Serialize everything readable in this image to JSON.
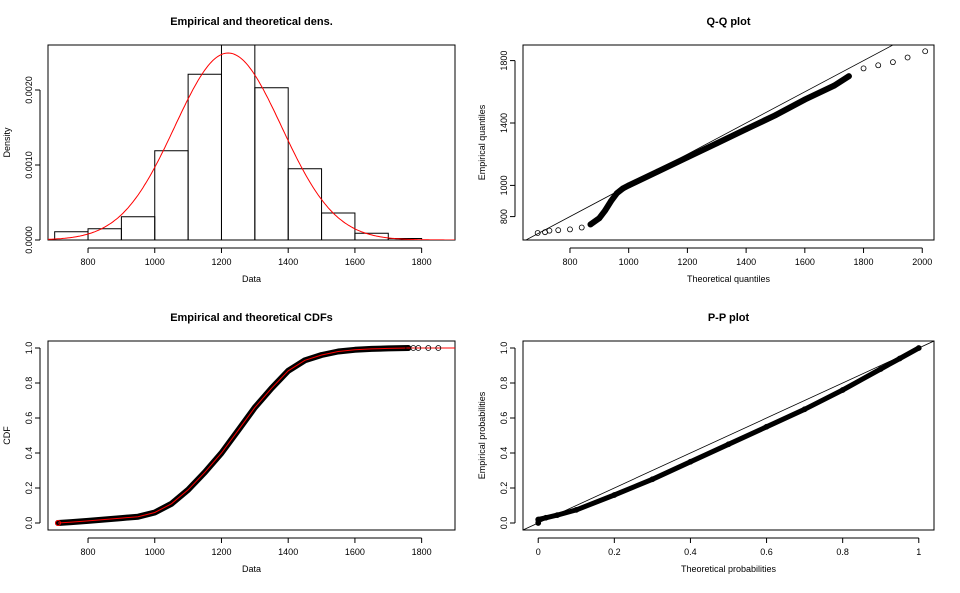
{
  "chart_data": [
    {
      "type": "histogram",
      "title": "Empirical and theoretical dens.",
      "xlabel": "Data",
      "ylabel": "Density",
      "xlim": [
        680,
        1900
      ],
      "ylim": [
        0,
        0.0026
      ],
      "x_ticks": [
        800,
        1000,
        1200,
        1400,
        1600,
        1800
      ],
      "y_ticks": [
        0.0,
        0.001,
        0.002
      ],
      "y_tick_labels": [
        "0.0000",
        "0.0010",
        "0.0020"
      ],
      "bins": [
        {
          "x0": 700,
          "x1": 800,
          "density": 0.00011
        },
        {
          "x0": 800,
          "x1": 900,
          "density": 0.00015
        },
        {
          "x0": 900,
          "x1": 1000,
          "density": 0.00031
        },
        {
          "x0": 1000,
          "x1": 1100,
          "density": 0.00119
        },
        {
          "x0": 1100,
          "x1": 1200,
          "density": 0.00221
        },
        {
          "x0": 1200,
          "x1": 1300,
          "density": 0.00262
        },
        {
          "x0": 1300,
          "x1": 1400,
          "density": 0.00203
        },
        {
          "x0": 1400,
          "x1": 1500,
          "density": 0.00095
        },
        {
          "x0": 1500,
          "x1": 1600,
          "density": 0.00036
        },
        {
          "x0": 1600,
          "x1": 1700,
          "density": 9e-05
        },
        {
          "x0": 1700,
          "x1": 1800,
          "density": 2e-05
        }
      ],
      "density_curve": {
        "color": "#ff0000",
        "mean": 1220,
        "sd": 160
      }
    },
    {
      "type": "scatter",
      "title": "Q-Q plot",
      "xlabel": "Theoretical quantiles",
      "ylabel": "Empirical quantiles",
      "xlim": [
        640,
        2040
      ],
      "ylim": [
        650,
        1900
      ],
      "x_ticks": [
        800,
        1000,
        1200,
        1400,
        1600,
        1800,
        2000
      ],
      "y_ticks": [
        800,
        1000,
        1400,
        1800
      ],
      "reference_line": "y = x",
      "points": [
        [
          690,
          695
        ],
        [
          715,
          700
        ],
        [
          730,
          710
        ],
        [
          760,
          713
        ],
        [
          800,
          718
        ],
        [
          840,
          730
        ],
        [
          870,
          750
        ],
        [
          900,
          790
        ],
        [
          920,
          840
        ],
        [
          940,
          900
        ],
        [
          960,
          950
        ],
        [
          980,
          980
        ],
        [
          1000,
          1000
        ],
        [
          1100,
          1090
        ],
        [
          1200,
          1180
        ],
        [
          1300,
          1270
        ],
        [
          1400,
          1360
        ],
        [
          1500,
          1450
        ],
        [
          1600,
          1550
        ],
        [
          1700,
          1640
        ],
        [
          1750,
          1700
        ],
        [
          1800,
          1750
        ],
        [
          1850,
          1770
        ],
        [
          1900,
          1790
        ],
        [
          1950,
          1820
        ],
        [
          2010,
          1860
        ]
      ]
    },
    {
      "type": "line",
      "title": "Empirical and theoretical CDFs",
      "xlabel": "Data",
      "ylabel": "CDF",
      "xlim": [
        680,
        1900
      ],
      "ylim": [
        -0.04,
        1.04
      ],
      "x_ticks": [
        800,
        1000,
        1200,
        1400,
        1600,
        1800
      ],
      "y_ticks": [
        0.0,
        0.2,
        0.4,
        0.6,
        0.8,
        1.0
      ],
      "y_tick_labels": [
        "0.0",
        "0.2",
        "0.4",
        "0.6",
        "0.8",
        "1.0"
      ],
      "empirical": [
        [
          710,
          0.0
        ],
        [
          750,
          0.005
        ],
        [
          800,
          0.012
        ],
        [
          850,
          0.02
        ],
        [
          900,
          0.028
        ],
        [
          950,
          0.036
        ],
        [
          1000,
          0.06
        ],
        [
          1050,
          0.11
        ],
        [
          1100,
          0.19
        ],
        [
          1150,
          0.29
        ],
        [
          1200,
          0.4
        ],
        [
          1250,
          0.53
        ],
        [
          1300,
          0.66
        ],
        [
          1350,
          0.77
        ],
        [
          1400,
          0.87
        ],
        [
          1450,
          0.93
        ],
        [
          1500,
          0.96
        ],
        [
          1550,
          0.98
        ],
        [
          1600,
          0.99
        ],
        [
          1650,
          0.995
        ],
        [
          1700,
          0.998
        ],
        [
          1760,
          1.0
        ]
      ],
      "theoretical_color": "#ff0000",
      "outlier_points": [
        [
          1760,
          1.0
        ],
        [
          1775,
          1.0
        ],
        [
          1790,
          1.0
        ],
        [
          1820,
          1.0
        ],
        [
          1850,
          1.0
        ]
      ]
    },
    {
      "type": "scatter",
      "title": "P-P plot",
      "xlabel": "Theoretical probabilities",
      "ylabel": "Empirical probabilities",
      "xlim": [
        -0.04,
        1.04
      ],
      "ylim": [
        -0.04,
        1.04
      ],
      "x_ticks": [
        0.0,
        0.2,
        0.4,
        0.6,
        0.8,
        1.0
      ],
      "y_ticks": [
        0.0,
        0.2,
        0.4,
        0.6,
        0.8,
        1.0
      ],
      "y_tick_labels": [
        "0.0",
        "0.2",
        "0.4",
        "0.6",
        "0.8",
        "1.0"
      ],
      "reference_line": "y = x",
      "points": [
        [
          0.0,
          0.0
        ],
        [
          0.0,
          0.02
        ],
        [
          0.02,
          0.03
        ],
        [
          0.05,
          0.045
        ],
        [
          0.1,
          0.075
        ],
        [
          0.2,
          0.16
        ],
        [
          0.3,
          0.25
        ],
        [
          0.4,
          0.35
        ],
        [
          0.5,
          0.45
        ],
        [
          0.6,
          0.55
        ],
        [
          0.7,
          0.65
        ],
        [
          0.8,
          0.76
        ],
        [
          0.9,
          0.88
        ],
        [
          0.95,
          0.94
        ],
        [
          1.0,
          1.0
        ]
      ]
    }
  ]
}
